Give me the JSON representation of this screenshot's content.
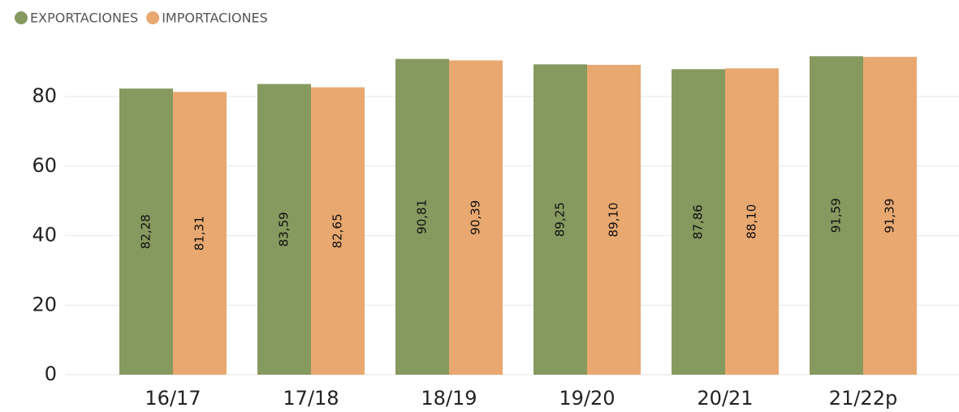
{
  "chart_data": {
    "type": "bar",
    "categories": [
      "16/17",
      "17/18",
      "18/19",
      "19/20",
      "20/21",
      "21/22p"
    ],
    "series": [
      {
        "name": "EXPORTACIONES",
        "color": "#86995f",
        "values": [
          82.28,
          83.59,
          90.81,
          89.25,
          87.86,
          91.59
        ],
        "value_labels": [
          "82,28",
          "83,59",
          "90,81",
          "89,25",
          "87,86",
          "91,59"
        ]
      },
      {
        "name": "IMPORTACIONES",
        "color": "#e8a870",
        "values": [
          81.31,
          82.65,
          90.39,
          89.1,
          88.1,
          91.39
        ],
        "value_labels": [
          "81,31",
          "82,65",
          "90,39",
          "89,10",
          "88,10",
          "91,39"
        ]
      }
    ],
    "ylim": [
      0,
      96
    ],
    "yticks": [
      0,
      20,
      40,
      60,
      80
    ],
    "grid": true,
    "legend": "top-left"
  }
}
